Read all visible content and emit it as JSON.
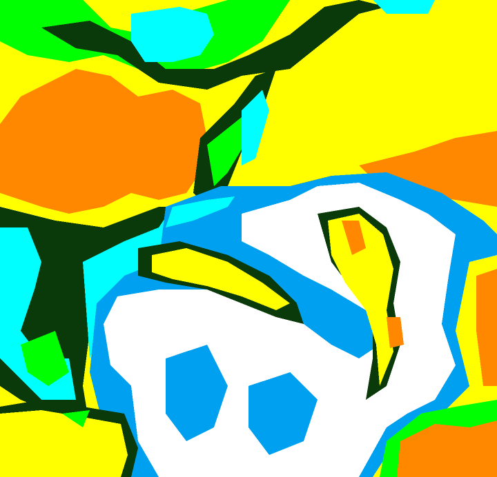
{
  "map": {
    "type": "classified raster",
    "class_colors": {
      "yellow": "#ffff00",
      "orange": "#ff8800",
      "dark_green": "#0a3a0a",
      "green": "#00ff00",
      "cyan": "#00ffff",
      "blue": "#00a0f0",
      "white": "#ffffff"
    }
  }
}
